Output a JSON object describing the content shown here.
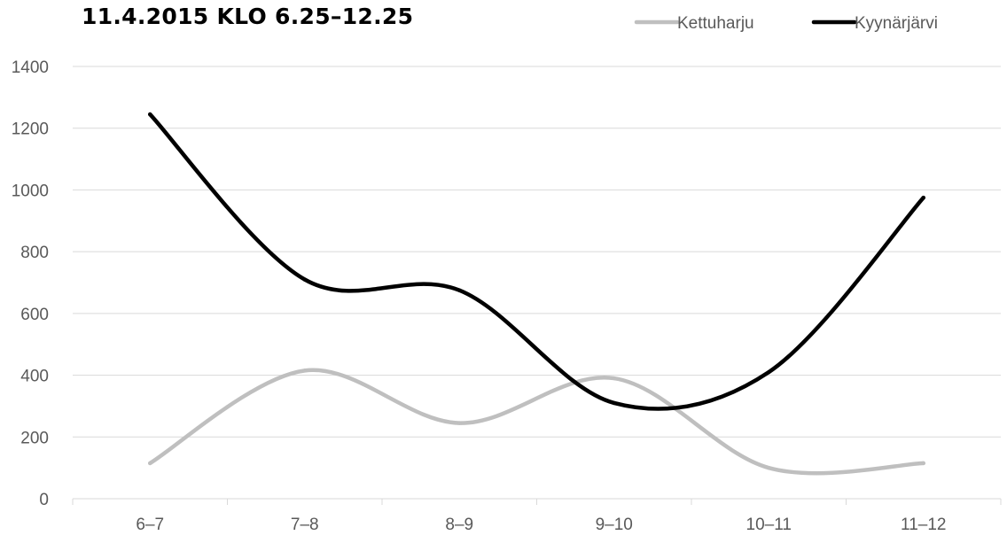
{
  "chart_data": {
    "type": "line",
    "title": "11.4.2015 KLO 6.25–12.25",
    "categories": [
      "6–7",
      "7–8",
      "8–9",
      "9–10",
      "10–11",
      "11–12"
    ],
    "series": [
      {
        "name": "Kettuharju",
        "color": "#bfbfbf",
        "values": [
          115,
          415,
          245,
          390,
          100,
          115
        ]
      },
      {
        "name": "Kyynärjärvi",
        "color": "#000000",
        "values": [
          1245,
          710,
          675,
          310,
          410,
          975
        ]
      }
    ],
    "ylim": [
      0,
      1400
    ],
    "yticks": [
      0,
      200,
      400,
      600,
      800,
      1000,
      1200,
      1400
    ],
    "grid": true,
    "smooth": true,
    "legend_position": "top-right"
  }
}
